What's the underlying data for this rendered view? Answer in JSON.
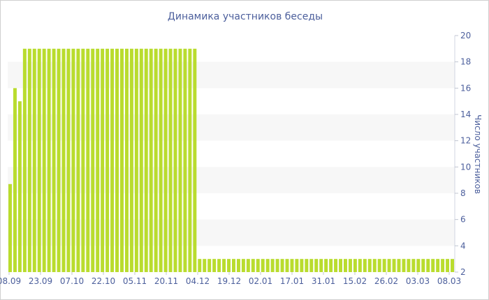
{
  "chart_data": {
    "type": "bar",
    "title": "Динамика участников беседы",
    "xlabel": "",
    "ylabel": "Число участников",
    "ylim": [
      2,
      20
    ],
    "yticks": [
      2,
      4,
      6,
      8,
      10,
      12,
      14,
      16,
      18,
      20
    ],
    "y_axis_side": "right",
    "grid": "alternating horizontal bands",
    "bar_color": "#b9dc2e",
    "band_color": "#f7f7f7",
    "text_color": "#4c5f9c",
    "x_tick_labels": [
      "08.09",
      "23.09",
      "07.10",
      "22.10",
      "05.11",
      "20.11",
      "04.12",
      "19.12",
      "02.01",
      "17.01",
      "31.01",
      "15.02",
      "26.02",
      "03.03",
      "08.03"
    ],
    "values": [
      8.7,
      16,
      15,
      19,
      19,
      19,
      19,
      19,
      19,
      19,
      19,
      19,
      19,
      19,
      19,
      19,
      19,
      19,
      19,
      19,
      19,
      19,
      19,
      19,
      19,
      19,
      19,
      19,
      19,
      19,
      19,
      19,
      19,
      19,
      19,
      19,
      19,
      19,
      19,
      3,
      3,
      3,
      3,
      3,
      3,
      3,
      3,
      3,
      3,
      3,
      3,
      3,
      3,
      3,
      3,
      3,
      3,
      3,
      3,
      3,
      3,
      3,
      3,
      3,
      3,
      3,
      3,
      3,
      3,
      3,
      3,
      3,
      3,
      3,
      3,
      3,
      3,
      3,
      3,
      3,
      3,
      3,
      3,
      3,
      3,
      3,
      3,
      3,
      3,
      3,
      3,
      3
    ]
  }
}
